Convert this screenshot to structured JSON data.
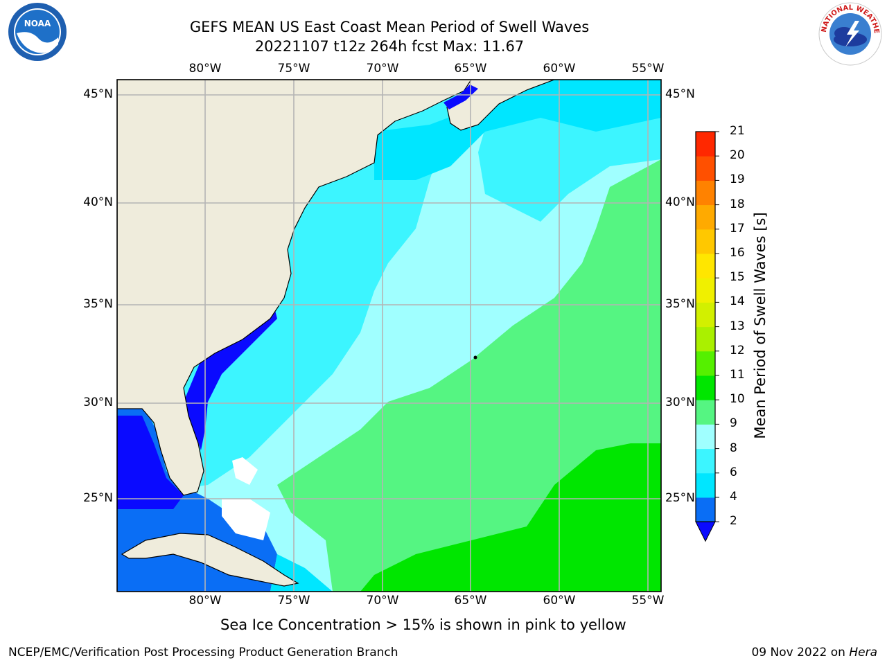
{
  "header": {
    "title_line1": "GEFS MEAN US East Coast Mean Period of Swell Waves",
    "title_line2": "20221107 t12z 264h fcst   Max: 11.67"
  },
  "logos": {
    "left_name": "NOAA",
    "right_name": "NATIONAL WEATHER SERVICE"
  },
  "map": {
    "lon_labels": [
      "80°W",
      "75°W",
      "70°W",
      "65°W",
      "60°W",
      "55°W"
    ],
    "lat_labels": [
      "45°N",
      "40°N",
      "35°N",
      "30°N",
      "25°N"
    ],
    "extent": {
      "lon_min": -85,
      "lon_max": -54.2,
      "lat_min": 20.5,
      "lat_max": 46
    },
    "land_color": "#efecdc",
    "grid_color": "#b4b4b4"
  },
  "colorbar": {
    "title": "Mean Period of Swell Waves [s]",
    "tick_labels": [
      "2",
      "4",
      "6",
      "8",
      "9",
      "10",
      "11",
      "12",
      "13",
      "14",
      "15",
      "16",
      "17",
      "18",
      "19",
      "20",
      "21"
    ],
    "colors": [
      "#0a0aff",
      "#0a6ef5",
      "#00e6ff",
      "#3cf5ff",
      "#a0ffff",
      "#55f582",
      "#00e600",
      "#55f000",
      "#aaf000",
      "#d2f000",
      "#f0f000",
      "#ffe600",
      "#ffc800",
      "#ffaa00",
      "#ff8200",
      "#ff5000",
      "#ff2800",
      "#ff0000"
    ]
  },
  "subtitle": "Sea Ice Concentration > 15% is shown in pink to yellow",
  "footer": {
    "left": "NCEP/EMC/Verification Post Processing Product Generation Branch",
    "right_date": "09 Nov 2022 on ",
    "right_host": "Hera"
  }
}
